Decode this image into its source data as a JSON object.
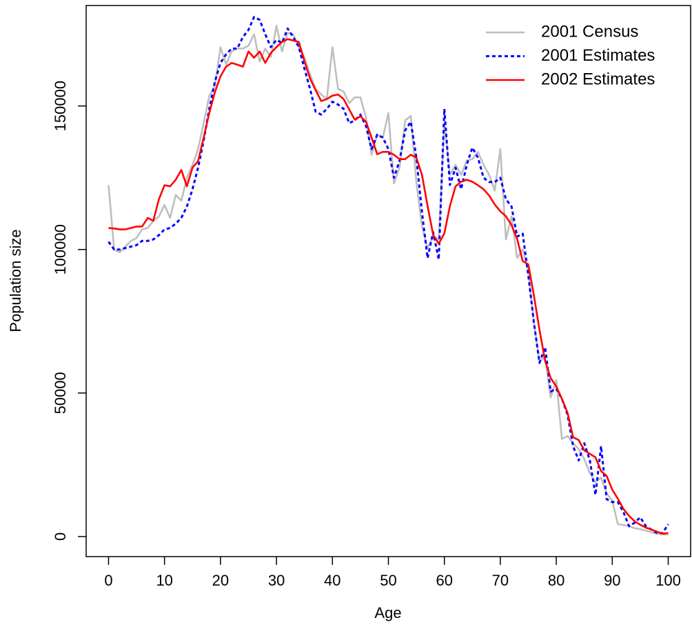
{
  "chart_data": {
    "type": "line",
    "x_label": "Age",
    "y_label": "Population size",
    "x": [
      0,
      1,
      2,
      3,
      4,
      5,
      6,
      7,
      8,
      9,
      10,
      11,
      12,
      13,
      14,
      15,
      16,
      17,
      18,
      19,
      20,
      21,
      22,
      23,
      24,
      25,
      26,
      27,
      28,
      29,
      30,
      31,
      32,
      33,
      34,
      35,
      36,
      37,
      38,
      39,
      40,
      41,
      42,
      43,
      44,
      45,
      46,
      47,
      48,
      49,
      50,
      51,
      52,
      53,
      54,
      55,
      56,
      57,
      58,
      59,
      60,
      61,
      62,
      63,
      64,
      65,
      66,
      67,
      68,
      69,
      70,
      71,
      72,
      73,
      74,
      75,
      76,
      77,
      78,
      79,
      80,
      81,
      82,
      83,
      84,
      85,
      86,
      87,
      88,
      89,
      90,
      91,
      92,
      93,
      94,
      95,
      96,
      97,
      98,
      99,
      100
    ],
    "series": [
      {
        "name": "2001 Census",
        "color": "#bebebe",
        "dashed": false,
        "values": [
          122400,
          100000,
          99000,
          101000,
          103000,
          104000,
          107000,
          107500,
          110000,
          111500,
          115500,
          111000,
          119000,
          117000,
          125000,
          129500,
          135000,
          144000,
          153500,
          157000,
          170500,
          164500,
          169000,
          170000,
          170000,
          171000,
          175000,
          165500,
          170000,
          167000,
          178000,
          169000,
          175500,
          175000,
          170500,
          167000,
          161000,
          156000,
          154000,
          152500,
          170500,
          156000,
          155000,
          151000,
          153000,
          153000,
          146000,
          133000,
          140000,
          139000,
          147500,
          123000,
          128500,
          145000,
          146500,
          123500,
          108000,
          100500,
          104500,
          103500,
          144000,
          126000,
          129500,
          126000,
          131000,
          131500,
          134000,
          129500,
          126000,
          120500,
          135000,
          103500,
          111500,
          97000,
          100000,
          92500,
          74500,
          61000,
          62500,
          48500,
          54500,
          34000,
          35000,
          32500,
          30500,
          27000,
          22000,
          19000,
          20500,
          15000,
          12500,
          4300,
          4000,
          3600,
          2900,
          2600,
          2000,
          1500,
          1000,
          700,
          700
        ]
      },
      {
        "name": "2001 Estimates",
        "color": "#0000ff",
        "dashed": true,
        "values": [
          102700,
          100000,
          100000,
          100500,
          101000,
          101500,
          103000,
          103000,
          103500,
          105000,
          107000,
          107500,
          109000,
          111000,
          115000,
          121000,
          128500,
          138000,
          149000,
          158500,
          165000,
          168000,
          170000,
          170000,
          174000,
          176500,
          181000,
          180000,
          175000,
          170500,
          173000,
          172000,
          177000,
          174000,
          170500,
          163000,
          156000,
          148000,
          147000,
          149000,
          151500,
          150500,
          149000,
          144000,
          145000,
          147000,
          143000,
          135000,
          140000,
          139000,
          135000,
          125000,
          131000,
          141500,
          144500,
          132000,
          113000,
          97000,
          106000,
          96500,
          149000,
          122500,
          128500,
          121000,
          129500,
          135500,
          132000,
          125000,
          123500,
          123500,
          125000,
          117500,
          115000,
          104500,
          105500,
          91000,
          74500,
          60500,
          66000,
          50500,
          51500,
          48000,
          42500,
          31500,
          26500,
          32500,
          26500,
          14500,
          31500,
          13000,
          12000,
          12000,
          8500,
          3600,
          4800,
          6700,
          3600,
          2400,
          1200,
          1200,
          4300
        ]
      },
      {
        "name": "2002 Estimates",
        "color": "#ff0000",
        "dashed": false,
        "values": [
          107500,
          107300,
          107000,
          107000,
          107500,
          108000,
          108000,
          111000,
          110000,
          117500,
          122400,
          122000,
          124300,
          127700,
          122000,
          128500,
          130800,
          139000,
          147600,
          154800,
          160300,
          163700,
          165000,
          164400,
          163700,
          169000,
          166800,
          169000,
          165000,
          168500,
          170500,
          172300,
          173300,
          172800,
          172300,
          165600,
          159600,
          155500,
          151700,
          152400,
          153600,
          154000,
          152400,
          148800,
          145200,
          146400,
          144500,
          139000,
          133200,
          134000,
          134000,
          133000,
          131500,
          131500,
          133000,
          132000,
          126000,
          115200,
          105100,
          102000,
          105600,
          115200,
          122000,
          123600,
          124300,
          123600,
          122400,
          121000,
          118800,
          115700,
          113300,
          111600,
          108500,
          103700,
          96000,
          94800,
          84000,
          72000,
          61200,
          55200,
          52300,
          48000,
          43200,
          34600,
          33600,
          30000,
          28800,
          27600,
          22800,
          21100,
          16300,
          13200,
          9600,
          7200,
          5300,
          4100,
          3100,
          2400,
          1700,
          1000,
          1200
        ]
      }
    ],
    "xlim": [
      -4,
      104
    ],
    "xticks": [
      0,
      10,
      20,
      30,
      40,
      50,
      60,
      70,
      80,
      90,
      100
    ],
    "ylim": [
      -7000,
      185000
    ],
    "yticks": [
      0,
      50000,
      100000,
      150000
    ],
    "legend": "top-right"
  }
}
